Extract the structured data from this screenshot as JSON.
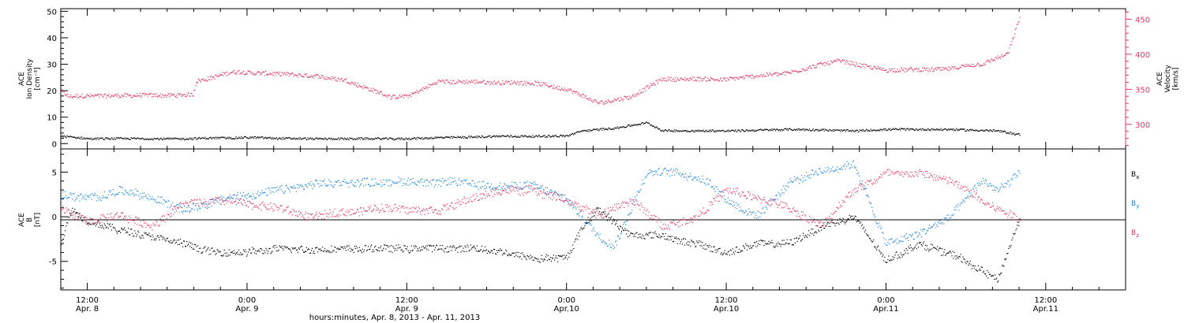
{
  "colors": {
    "density": "#000000",
    "velocity": "#e8335f",
    "bx": "#000000",
    "by": "#1a86e0",
    "bz": "#e8335f",
    "axis": "#000000"
  },
  "xaxis": {
    "range": [
      8.417,
      11.75
    ],
    "range_unit": "days of April 2013 (fractional)",
    "title": "hours:minutes, Apr.  8, 2013 - Apr. 11, 2013",
    "ticks": [
      {
        "t": 8.5,
        "time": "12:00",
        "date": "Apr. 8"
      },
      {
        "t": 9.0,
        "time": "0:00",
        "date": "Apr. 9"
      },
      {
        "t": 9.5,
        "time": "12:00",
        "date": "Apr. 9"
      },
      {
        "t": 10.0,
        "time": "0:00",
        "date": "Apr.10"
      },
      {
        "t": 10.5,
        "time": "12:00",
        "date": "Apr.10"
      },
      {
        "t": 11.0,
        "time": "0:00",
        "date": "Apr.11"
      },
      {
        "t": 11.5,
        "time": "12:00",
        "date": "Apr.11"
      }
    ]
  },
  "panel1": {
    "ylabel_left": [
      "ACE",
      "Ion Density",
      "[cm⁻³]"
    ],
    "ylabel_right": [
      "ACE",
      "Velocity",
      "[km/s]"
    ],
    "left_ticks": [
      "0",
      "10",
      "20",
      "30",
      "40",
      "50"
    ],
    "right_ticks": [
      "300",
      "350",
      "400",
      "450"
    ]
  },
  "panel2": {
    "ylabel": [
      "ACE",
      "B",
      "[nT]"
    ],
    "ticks": [
      "-5",
      "0",
      "5"
    ],
    "legend": [
      {
        "text": "B",
        "sub": "x",
        "color": "#000000"
      },
      {
        "text": "B",
        "sub": "y",
        "color": "#1a86e0"
      },
      {
        "text": "B",
        "sub": "z",
        "color": "#e8335f"
      }
    ]
  },
  "chart_data": [
    {
      "type": "scatter",
      "title": "",
      "xlabel": "hours:minutes, Apr.  8, 2013 - Apr. 11, 2013",
      "ylabel": "ACE Ion Density [cm⁻³] / ACE Velocity [km/s]",
      "ylim_left": [
        -2,
        51
      ],
      "ylim_right": [
        265,
        465
      ],
      "grid": false,
      "series": [
        {
          "name": "Ion Density",
          "axis": "left",
          "x": [
            8.417,
            8.5,
            8.6,
            8.8,
            9.0,
            9.2,
            9.5,
            9.8,
            10.0,
            10.05,
            10.15,
            10.25,
            10.3,
            10.5,
            10.7,
            10.9,
            11.0,
            11.2,
            11.35,
            11.42
          ],
          "values": [
            3,
            2,
            2,
            2,
            2.5,
            2,
            2,
            3,
            3,
            5,
            6,
            8,
            5,
            5,
            5.5,
            5,
            5.5,
            5.5,
            5,
            3.5
          ]
        },
        {
          "name": "Velocity",
          "axis": "right",
          "x": [
            8.417,
            8.44,
            8.6,
            8.83,
            8.84,
            8.95,
            9.1,
            9.3,
            9.45,
            9.5,
            9.6,
            9.8,
            9.9,
            10.0,
            10.1,
            10.2,
            10.3,
            10.5,
            10.7,
            10.85,
            10.95,
            11.0,
            11.15,
            11.3,
            11.35,
            11.38,
            11.42
          ],
          "values": [
            348,
            340,
            342,
            342,
            362,
            375,
            372,
            365,
            340,
            340,
            362,
            360,
            360,
            350,
            330,
            340,
            365,
            365,
            375,
            392,
            382,
            378,
            378,
            385,
            395,
            400,
            455
          ]
        }
      ]
    },
    {
      "type": "scatter",
      "title": "",
      "xlabel": "hours:minutes, Apr.  8, 2013 - Apr. 11, 2013",
      "ylabel": "ACE B [nT]",
      "ylim": [
        -8.2,
        7.6
      ],
      "grid": false,
      "reference_line": 0,
      "series": [
        {
          "name": "Bx",
          "x": [
            8.417,
            8.45,
            8.5,
            8.6,
            8.7,
            8.8,
            8.9,
            9.0,
            9.15,
            9.3,
            9.5,
            9.7,
            9.9,
            10.0,
            10.05,
            10.1,
            10.2,
            10.3,
            10.4,
            10.5,
            10.6,
            10.7,
            10.8,
            10.9,
            11.0,
            11.1,
            11.2,
            11.3,
            11.35,
            11.42
          ],
          "values": [
            -3,
            1,
            -0.5,
            -1.5,
            -2,
            -3,
            -4,
            -4,
            -3.5,
            -3.5,
            -3.5,
            -3.5,
            -4.5,
            -4.5,
            -1,
            1,
            -2,
            -2,
            -3,
            -4,
            -3,
            -3,
            -1,
            0,
            -5,
            -3,
            -4,
            -6,
            -7,
            0
          ]
        },
        {
          "name": "By",
          "x": [
            8.417,
            8.5,
            8.6,
            8.7,
            8.8,
            8.9,
            9.0,
            9.1,
            9.2,
            9.4,
            9.6,
            9.8,
            9.9,
            10.0,
            10.1,
            10.15,
            10.25,
            10.35,
            10.45,
            10.5,
            10.6,
            10.7,
            10.8,
            10.9,
            11.0,
            11.1,
            11.2,
            11.3,
            11.35,
            11.42
          ],
          "values": [
            2.5,
            2,
            3,
            2,
            1,
            2,
            2.5,
            3,
            3.5,
            4,
            4,
            3.5,
            3.5,
            2,
            -2,
            -3,
            5,
            5,
            4,
            2,
            0,
            4,
            5,
            6,
            -3,
            -2,
            0,
            4,
            3,
            5
          ]
        },
        {
          "name": "Bz",
          "x": [
            8.417,
            8.5,
            8.6,
            8.7,
            8.8,
            8.9,
            9.0,
            9.1,
            9.2,
            9.4,
            9.6,
            9.8,
            9.9,
            10.0,
            10.1,
            10.2,
            10.3,
            10.4,
            10.5,
            10.6,
            10.7,
            10.8,
            10.9,
            11.0,
            11.1,
            11.2,
            11.3,
            11.35,
            11.42
          ],
          "values": [
            1,
            -0.5,
            0,
            -1,
            1.5,
            2,
            1.5,
            1,
            0,
            1,
            1,
            3,
            3,
            2,
            0,
            2,
            -1,
            0,
            3,
            2,
            1,
            -1,
            3,
            5,
            5,
            4,
            2,
            1,
            0
          ]
        }
      ]
    }
  ]
}
